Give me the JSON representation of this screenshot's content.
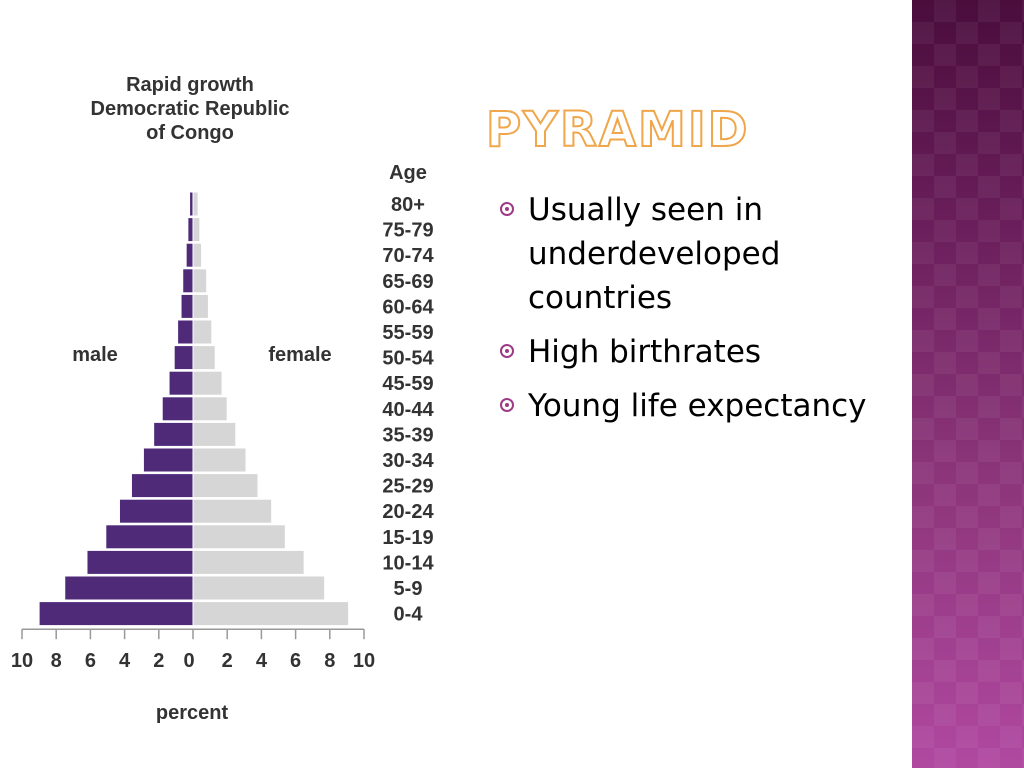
{
  "slide": {
    "title": "PYRAMID",
    "bullets": [
      "Usually seen in underdeveloped countries",
      "High birthrates",
      "Young life expectancy"
    ]
  },
  "colors": {
    "male_bar": "#4e2a78",
    "female_bar": "#d6d6d6",
    "title_outline": "#f0a64a",
    "bullet": "#9c3a86"
  },
  "chart_data": {
    "type": "bar",
    "orientation": "horizontal-population-pyramid",
    "title": "Rapid growth Democratic Republic of Congo",
    "title_lines": [
      "Rapid growth",
      "Democratic Republic",
      "of Congo"
    ],
    "age_header": "Age",
    "xlabel": "percent",
    "left_label": "male",
    "right_label": "female",
    "categories": [
      "80+",
      "75-79",
      "70-74",
      "65-69",
      "60-64",
      "55-59",
      "50-54",
      "45-59",
      "40-44",
      "35-39",
      "30-34",
      "25-29",
      "20-24",
      "15-19",
      "10-14",
      "5-9",
      "0-4"
    ],
    "x_ticks_left": [
      "10",
      "8",
      "6",
      "4",
      "2",
      "0"
    ],
    "x_ticks_right": [
      "0",
      "2",
      "4",
      "6",
      "8",
      "10"
    ],
    "xlim": [
      -10,
      10
    ],
    "series": [
      {
        "name": "male",
        "values": [
          0.2,
          0.3,
          0.4,
          0.6,
          0.7,
          0.9,
          1.1,
          1.4,
          1.8,
          2.3,
          2.9,
          3.6,
          4.3,
          5.1,
          6.2,
          7.5,
          9.0
        ]
      },
      {
        "name": "female",
        "values": [
          0.3,
          0.4,
          0.5,
          0.8,
          0.9,
          1.1,
          1.3,
          1.7,
          2.0,
          2.5,
          3.1,
          3.8,
          4.6,
          5.4,
          6.5,
          7.7,
          9.1
        ]
      }
    ]
  }
}
